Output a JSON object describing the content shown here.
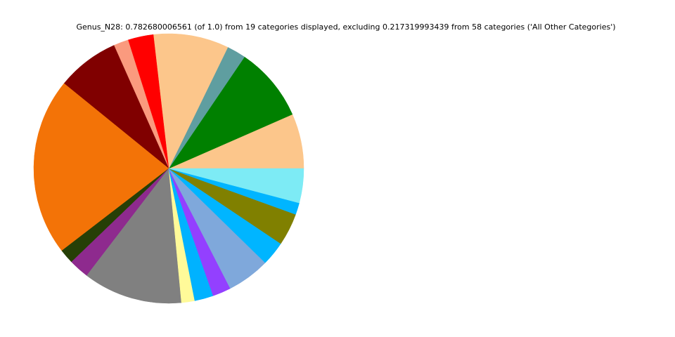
{
  "chart_data": {
    "type": "pie",
    "title": "Genus_N28: 0.782680006561 (of 1.0) from 19 categories displayed, excluding 0.217319993439 from 58 categories ('All Other Categories')",
    "values": [
      0.0515,
      0.07,
      0.0178,
      0.0707,
      0.0239,
      0.0139,
      0.0585,
      0.1668,
      0.0137,
      0.0189,
      0.0931,
      0.0124,
      0.0176,
      0.0172,
      0.0402,
      0.0228,
      0.0304,
      0.0111,
      0.0322
    ],
    "colors": [
      "#fcc68b",
      "#008000",
      "#5f9ea0",
      "#fcc68b",
      "#ff0000",
      "#fa9a7e",
      "#800000",
      "#f37307",
      "#263f06",
      "#8e2a8e",
      "#808080",
      "#fffa99",
      "#00b2ff",
      "#9340ff",
      "#7fa8db",
      "#00b5ff",
      "#808000",
      "#00b5ff",
      "#7debf5"
    ]
  }
}
